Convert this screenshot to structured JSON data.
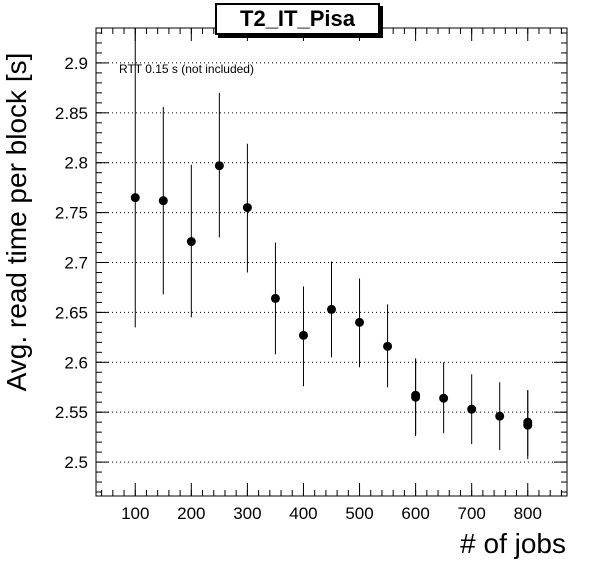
{
  "chart_data": {
    "type": "scatter",
    "title": "T2_IT_Pisa",
    "xlabel": "# of jobs",
    "ylabel": "Avg. read time per block [s]",
    "annotation": "RTT 0.15 s (not included)",
    "xlim": [
      30,
      870
    ],
    "ylim": [
      2.466,
      2.935
    ],
    "xticks": [
      100,
      200,
      300,
      400,
      500,
      600,
      700,
      800
    ],
    "xtick_labels": [
      "100",
      "200",
      "300",
      "400",
      "500",
      "600",
      "700",
      "800"
    ],
    "yticks": [
      2.5,
      2.55,
      2.6,
      2.65,
      2.7,
      2.75,
      2.8,
      2.85,
      2.9
    ],
    "ytick_labels": [
      "2.5",
      "2.55",
      "2.6",
      "2.65",
      "2.7",
      "2.75",
      "2.8",
      "2.85",
      "2.9"
    ],
    "grid": "horizontal dotted",
    "marker_color": "#000000",
    "points": [
      {
        "x": 100,
        "y": 2.765,
        "ylo": 2.635,
        "yhi": 2.935
      },
      {
        "x": 150,
        "y": 2.762,
        "ylo": 2.668,
        "yhi": 2.856
      },
      {
        "x": 200,
        "y": 2.721,
        "ylo": 2.645,
        "yhi": 2.798
      },
      {
        "x": 250,
        "y": 2.797,
        "ylo": 2.725,
        "yhi": 2.87
      },
      {
        "x": 300,
        "y": 2.755,
        "ylo": 2.69,
        "yhi": 2.819
      },
      {
        "x": 350,
        "y": 2.664,
        "ylo": 2.608,
        "yhi": 2.72
      },
      {
        "x": 400,
        "y": 2.627,
        "ylo": 2.576,
        "yhi": 2.676
      },
      {
        "x": 450,
        "y": 2.653,
        "ylo": 2.605,
        "yhi": 2.701
      },
      {
        "x": 500,
        "y": 2.64,
        "ylo": 2.595,
        "yhi": 2.684
      },
      {
        "x": 550,
        "y": 2.616,
        "ylo": 2.575,
        "yhi": 2.658
      },
      {
        "x": 600,
        "y": 2.565,
        "ylo": 2.526,
        "yhi": 2.604
      },
      {
        "x": 600,
        "y": 2.567,
        "ylo": 2.528,
        "yhi": 2.602
      },
      {
        "x": 650,
        "y": 2.564,
        "ylo": 2.529,
        "yhi": 2.6
      },
      {
        "x": 700,
        "y": 2.553,
        "ylo": 2.518,
        "yhi": 2.588
      },
      {
        "x": 750,
        "y": 2.546,
        "ylo": 2.512,
        "yhi": 2.58
      },
      {
        "x": 800,
        "y": 2.537,
        "ylo": 2.503,
        "yhi": 2.572
      },
      {
        "x": 800,
        "y": 2.54,
        "ylo": 2.506,
        "yhi": 2.572
      }
    ]
  }
}
